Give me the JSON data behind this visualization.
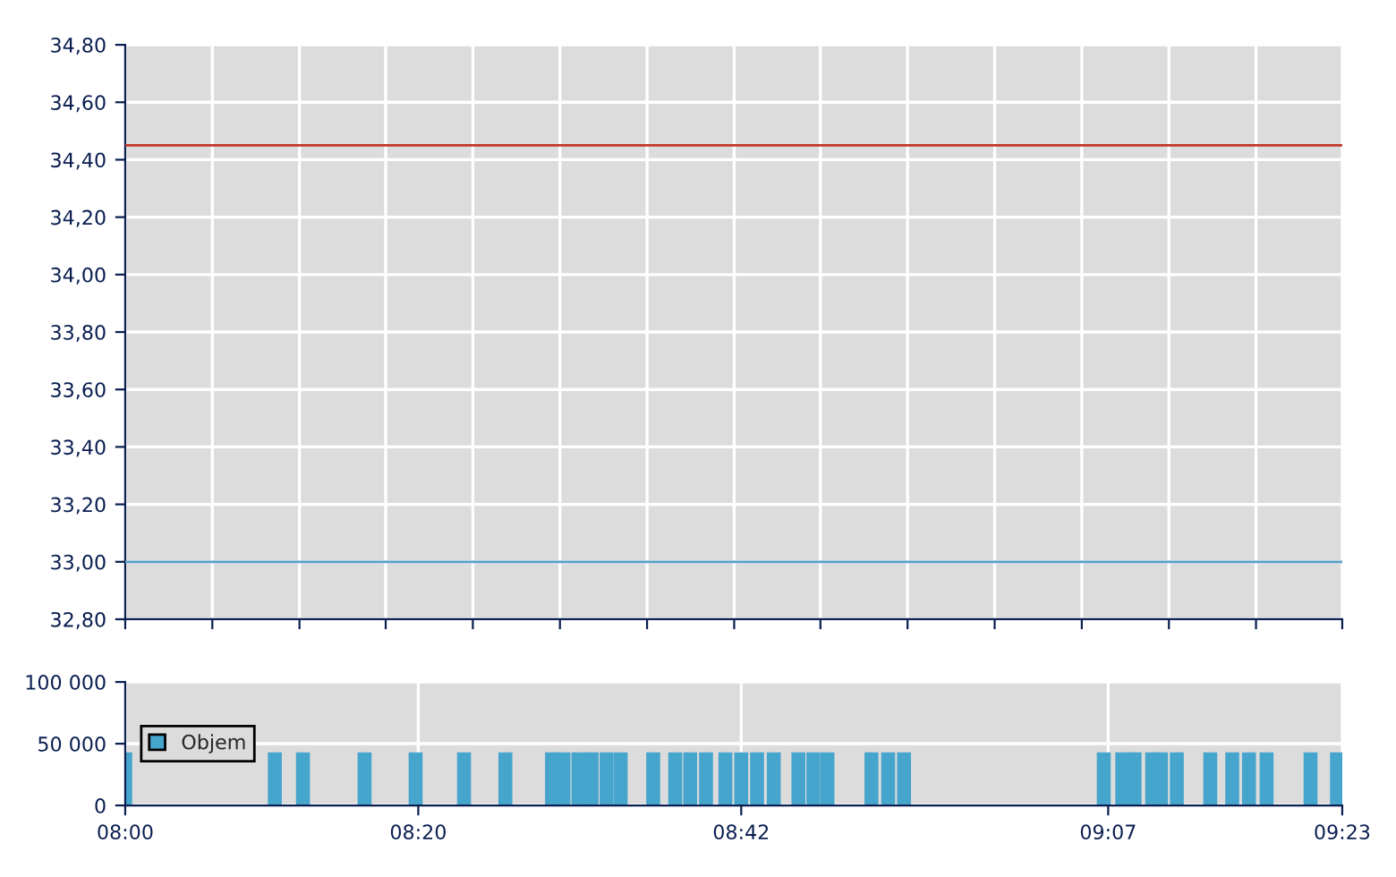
{
  "chart_data": [
    {
      "type": "line",
      "ref_lines": [
        {
          "axis": "y",
          "value": 34.45,
          "color": "#c0392b"
        },
        {
          "axis": "y",
          "value": 33.0,
          "color": "#5a9fc8"
        }
      ],
      "xlim": [
        8,
        9.383
      ],
      "xticks": [
        {
          "value": 8,
          "label": null
        },
        {
          "value": 8.099,
          "label": null
        },
        {
          "value": 8.198,
          "label": null
        },
        {
          "value": 8.296,
          "label": null
        },
        {
          "value": 8.395,
          "label": null
        },
        {
          "value": 8.494,
          "label": null
        },
        {
          "value": 8.593,
          "label": null
        },
        {
          "value": 8.692,
          "label": null
        },
        {
          "value": 8.79,
          "label": null
        },
        {
          "value": 8.889,
          "label": null
        },
        {
          "value": 8.988,
          "label": null
        },
        {
          "value": 9.087,
          "label": null
        },
        {
          "value": 9.186,
          "label": null
        },
        {
          "value": 9.285,
          "label": null
        },
        {
          "value": 9.383,
          "label": null
        }
      ],
      "ylim": [
        32.8,
        34.8
      ],
      "yticks": [
        {
          "value": 32.8,
          "label": "32,80"
        },
        {
          "value": 33.0,
          "label": "33,00"
        },
        {
          "value": 33.2,
          "label": "33,20"
        },
        {
          "value": 33.4,
          "label": "33,40"
        },
        {
          "value": 33.6,
          "label": "33,60"
        },
        {
          "value": 33.8,
          "label": "33,80"
        },
        {
          "value": 34.0,
          "label": "34,00"
        },
        {
          "value": 34.2,
          "label": "34,20"
        },
        {
          "value": 34.4,
          "label": "34,40"
        },
        {
          "value": 34.6,
          "label": "34,60"
        },
        {
          "value": 34.8,
          "label": "34,80"
        }
      ],
      "grid": true,
      "tick_labels": "y"
    },
    {
      "type": "bar",
      "series": [
        {
          "name": "Objem",
          "color": "#46a5cd",
          "x": [
            8.0,
            8.17,
            8.202,
            8.272,
            8.33,
            8.385,
            8.432,
            8.485,
            8.498,
            8.515,
            8.53,
            8.547,
            8.563,
            8.6,
            8.625,
            8.642,
            8.66,
            8.682,
            8.7,
            8.718,
            8.737,
            8.765,
            8.782,
            8.798,
            8.848,
            8.867,
            8.885,
            9.112,
            9.133,
            9.147,
            9.167,
            9.177,
            9.195,
            9.233,
            9.258,
            9.277,
            9.297,
            9.347,
            9.377
          ],
          "values": [
            43000,
            43000,
            43000,
            43000,
            43000,
            43000,
            43000,
            43000,
            43000,
            43000,
            43000,
            43000,
            43000,
            43000,
            43000,
            43000,
            43000,
            43000,
            43000,
            43000,
            43000,
            43000,
            43000,
            43000,
            43000,
            43000,
            43000,
            43000,
            43000,
            43000,
            43000,
            43000,
            43000,
            43000,
            43000,
            43000,
            43000,
            43000,
            43000
          ]
        }
      ],
      "xlim": [
        8,
        9.383
      ],
      "xticks": [
        {
          "value": 8,
          "label": "08:00"
        },
        {
          "value": 8.333,
          "label": "08:20"
        },
        {
          "value": 8.7,
          "label": "08:42"
        },
        {
          "value": 9.117,
          "label": "09:07"
        },
        {
          "value": 9.383,
          "label": "09:23"
        }
      ],
      "ylim": [
        0,
        100000
      ],
      "yticks": [
        0,
        {
          "value": 50000,
          "label": "50 000"
        },
        {
          "value": 100000,
          "label": "100 000"
        }
      ],
      "grid": true,
      "legend": "left"
    }
  ]
}
